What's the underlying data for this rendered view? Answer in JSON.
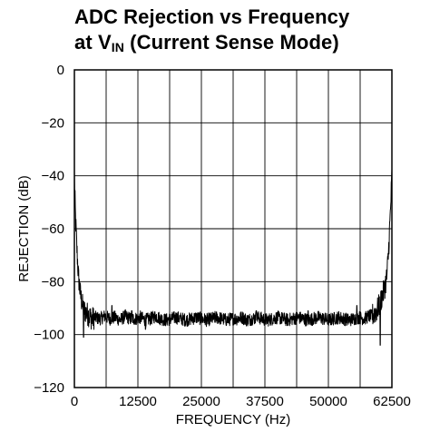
{
  "chart_data": {
    "type": "line",
    "title": {
      "line1": "ADC Rejection vs Frequency",
      "line2_prefix": "at V",
      "line2_subscript": "IN",
      "line2_suffix": " (Current Sense Mode)"
    },
    "xlabel": "FREQUENCY (Hz)",
    "ylabel": "REJECTION (dB)",
    "xlim": [
      0,
      62500
    ],
    "ylim": [
      -120,
      0
    ],
    "grid": true,
    "x_ticks": [
      0,
      12500,
      25000,
      37500,
      50000,
      62500
    ],
    "x_tick_labels": [
      "0",
      "12500",
      "25000",
      "37500",
      "50000",
      "62500"
    ],
    "y_ticks": [
      0,
      -20,
      -40,
      -60,
      -80,
      -100,
      -120
    ],
    "y_tick_labels": [
      "0",
      "−20",
      "−40",
      "−60",
      "−80",
      "−100",
      "−120"
    ],
    "series": [
      {
        "color": "#000000",
        "x": [
          0,
          200,
          500,
          800,
          1200,
          1600,
          2000,
          2500,
          3000,
          3500,
          4000,
          5000,
          6000,
          7000,
          8000,
          9000,
          10000,
          11000,
          12000,
          13000,
          14000,
          15000,
          16000,
          17000,
          18000,
          19000,
          20000,
          21000,
          22000,
          23000,
          24000,
          25000,
          26000,
          27000,
          28000,
          29000,
          30000,
          31000,
          32000,
          33000,
          34000,
          35000,
          36000,
          37000,
          38000,
          39000,
          40000,
          41000,
          42000,
          43000,
          44000,
          45000,
          46000,
          47000,
          48000,
          49000,
          50000,
          51000,
          52000,
          53000,
          54000,
          55000,
          56000,
          57000,
          58000,
          58500,
          59000,
          59500,
          60000,
          60500,
          61000,
          61500,
          61800,
          62000,
          62200,
          62500
        ],
        "y": [
          -40,
          -55,
          -68,
          -78,
          -85,
          -89,
          -91,
          -92,
          -93,
          -94,
          -93.5,
          -94,
          -93,
          -94,
          -93.5,
          -94.5,
          -93,
          -94,
          -94,
          -93.5,
          -94.5,
          -94,
          -93,
          -94,
          -94.5,
          -94,
          -93.5,
          -94,
          -94.5,
          -94,
          -93.5,
          -94,
          -94.5,
          -94,
          -93.5,
          -94,
          -94.5,
          -94,
          -94,
          -93.5,
          -94.5,
          -94,
          -93.5,
          -94,
          -94.5,
          -94,
          -93.5,
          -94,
          -94.5,
          -94,
          -93.5,
          -94,
          -94.5,
          -94,
          -93.5,
          -94,
          -94.5,
          -94,
          -93.5,
          -94,
          -94.5,
          -94,
          -93.5,
          -94,
          -93,
          -93,
          -92,
          -91,
          -89,
          -86,
          -83,
          -78,
          -70,
          -62,
          -54,
          -40
        ]
      }
    ],
    "noise_profile": {
      "baseline_band_db": 2.5,
      "spike_positions_hz": [
        1800,
        7400,
        11300,
        14000,
        26500,
        27500,
        35800,
        46000,
        55600,
        60200
      ],
      "spike_values_db": [
        -101,
        -89,
        -91,
        -98,
        -96,
        -92,
        -91,
        -91,
        -89,
        -104
      ]
    }
  }
}
